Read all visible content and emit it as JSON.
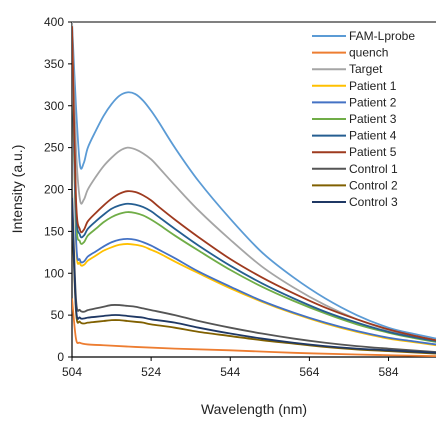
{
  "chart_data": {
    "type": "line",
    "title": "",
    "xlabel": "Wavelength (nm)",
    "ylabel": "Intensity (a.u.)",
    "xlim": [
      504,
      596
    ],
    "ylim": [
      0,
      400
    ],
    "xticks": [
      504,
      524,
      544,
      564,
      584
    ],
    "yticks": [
      0,
      50,
      100,
      150,
      200,
      250,
      300,
      350,
      400
    ],
    "grid": false,
    "legend": "top-right",
    "series": [
      {
        "name": "FAM-Lprobe",
        "color": "#5b9bd5",
        "x": [
          504,
          505,
          506,
          507,
          508,
          510,
          512,
          514,
          516,
          518,
          520,
          522,
          524,
          526,
          530,
          536,
          544,
          552,
          560,
          568,
          576,
          584,
          590,
          596
        ],
        "y": [
          400,
          300,
          230,
          232,
          250,
          270,
          288,
          302,
          312,
          316,
          314,
          306,
          294,
          280,
          250,
          210,
          165,
          125,
          95,
          70,
          50,
          35,
          28,
          22
        ]
      },
      {
        "name": "quench",
        "color": "#ed7d31",
        "x": [
          504,
          505,
          506,
          508,
          512,
          520,
          530,
          544,
          560,
          576,
          596
        ],
        "y": [
          70,
          22,
          17,
          15,
          14,
          12,
          10,
          8,
          5,
          3,
          1
        ]
      },
      {
        "name": "Target",
        "color": "#a5a5a5",
        "x": [
          504,
          505,
          506,
          507,
          508,
          510,
          512,
          514,
          516,
          518,
          520,
          522,
          524,
          526,
          530,
          536,
          544,
          552,
          560,
          568,
          576,
          584,
          590,
          596
        ],
        "y": [
          400,
          250,
          188,
          188,
          200,
          215,
          228,
          238,
          246,
          250,
          248,
          243,
          236,
          226,
          205,
          175,
          140,
          108,
          83,
          62,
          45,
          32,
          24,
          18
        ]
      },
      {
        "name": "Patient 1",
        "color": "#ffc000",
        "x": [
          504,
          505,
          506,
          507,
          508,
          510,
          512,
          514,
          516,
          518,
          520,
          522,
          524,
          526,
          530,
          536,
          544,
          552,
          560,
          568,
          576,
          584,
          590,
          596
        ],
        "y": [
          380,
          140,
          112,
          110,
          115,
          121,
          127,
          131,
          134,
          135,
          134,
          132,
          128,
          124,
          114,
          100,
          82,
          66,
          52,
          40,
          30,
          22,
          18,
          14
        ]
      },
      {
        "name": "Patient 2",
        "color": "#4472c4",
        "x": [
          504,
          505,
          506,
          507,
          508,
          510,
          512,
          514,
          516,
          518,
          520,
          522,
          524,
          526,
          530,
          536,
          544,
          552,
          560,
          568,
          576,
          584,
          590,
          596
        ],
        "y": [
          380,
          145,
          116,
          114,
          120,
          126,
          132,
          137,
          140,
          141,
          140,
          137,
          133,
          128,
          118,
          102,
          84,
          67,
          53,
          41,
          31,
          23,
          19,
          15
        ]
      },
      {
        "name": "Patient 3",
        "color": "#70ad47",
        "x": [
          504,
          505,
          506,
          507,
          508,
          510,
          512,
          514,
          516,
          518,
          520,
          522,
          524,
          526,
          530,
          536,
          544,
          552,
          560,
          568,
          576,
          584,
          590,
          596
        ],
        "y": [
          390,
          170,
          138,
          137,
          145,
          153,
          161,
          167,
          171,
          173,
          172,
          169,
          164,
          158,
          145,
          127,
          104,
          84,
          67,
          52,
          39,
          29,
          23,
          18
        ]
      },
      {
        "name": "Patient 4",
        "color": "#255e91",
        "x": [
          504,
          505,
          506,
          507,
          508,
          510,
          512,
          514,
          516,
          518,
          520,
          522,
          524,
          526,
          530,
          536,
          544,
          552,
          560,
          568,
          576,
          584,
          590,
          596
        ],
        "y": [
          390,
          180,
          146,
          145,
          153,
          162,
          170,
          177,
          181,
          183,
          182,
          179,
          174,
          167,
          153,
          133,
          109,
          88,
          70,
          54,
          41,
          30,
          24,
          19
        ]
      },
      {
        "name": "Patient 5",
        "color": "#9e3a1f",
        "x": [
          504,
          505,
          506,
          507,
          508,
          510,
          512,
          514,
          516,
          518,
          520,
          522,
          524,
          526,
          530,
          536,
          544,
          552,
          560,
          568,
          576,
          584,
          590,
          596
        ],
        "y": [
          395,
          190,
          152,
          152,
          162,
          172,
          181,
          189,
          195,
          198,
          197,
          193,
          187,
          179,
          164,
          143,
          117,
          95,
          76,
          59,
          45,
          33,
          26,
          20
        ]
      },
      {
        "name": "Control 1",
        "color": "#555555",
        "x": [
          504,
          505,
          506,
          507,
          508,
          510,
          512,
          514,
          516,
          518,
          520,
          522,
          524,
          530,
          536,
          544,
          552,
          560,
          568,
          576,
          584,
          596
        ],
        "y": [
          200,
          70,
          56,
          54,
          56,
          58,
          60,
          62,
          62,
          61,
          60,
          58,
          56,
          50,
          43,
          35,
          28,
          22,
          17,
          13,
          10,
          6
        ]
      },
      {
        "name": "Control 2",
        "color": "#806000",
        "x": [
          504,
          505,
          506,
          507,
          508,
          510,
          512,
          514,
          516,
          518,
          520,
          522,
          524,
          530,
          536,
          544,
          552,
          560,
          568,
          576,
          584,
          596
        ],
        "y": [
          180,
          55,
          42,
          40,
          41,
          42,
          43,
          44,
          44,
          43,
          42,
          41,
          39,
          35,
          30,
          25,
          20,
          16,
          12,
          9,
          7,
          4
        ]
      },
      {
        "name": "Control 3",
        "color": "#1f3864",
        "x": [
          504,
          505,
          506,
          507,
          508,
          510,
          512,
          514,
          516,
          518,
          520,
          522,
          524,
          530,
          536,
          544,
          552,
          560,
          568,
          576,
          584,
          596
        ],
        "y": [
          190,
          60,
          47,
          46,
          47,
          48,
          49,
          50,
          50,
          49,
          48,
          47,
          45,
          41,
          35,
          28,
          22,
          17,
          13,
          10,
          8,
          5
        ]
      }
    ]
  }
}
